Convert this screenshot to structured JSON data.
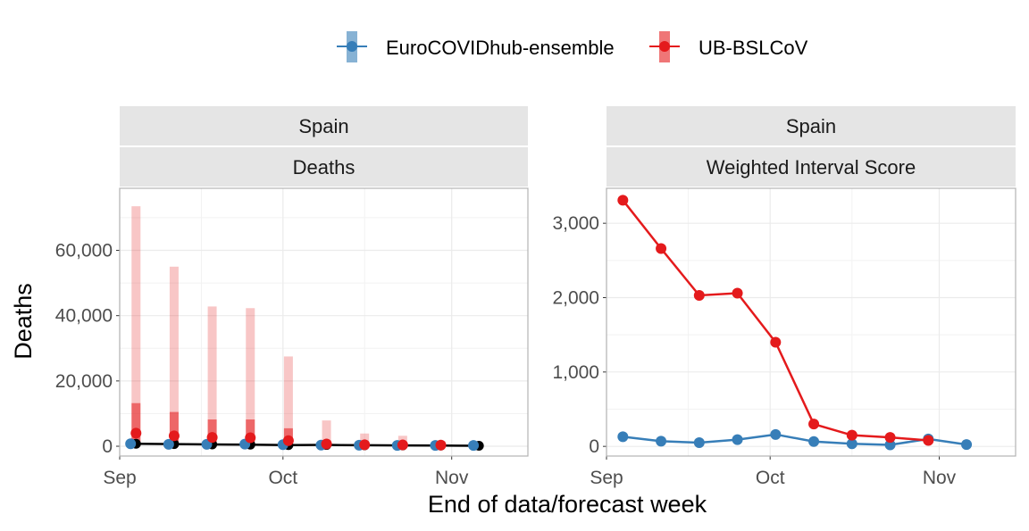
{
  "legend": {
    "items": [
      {
        "label": "EuroCOVIDhub-ensemble",
        "color": "#377eb8"
      },
      {
        "label": "UB-BSLCoV",
        "color": "#e41a1c"
      }
    ]
  },
  "xlabel": "End of data/forecast week",
  "ylabel": "Deaths",
  "chart_data": [
    {
      "type": "bar",
      "strip_top": "Spain",
      "strip_bottom": "Deaths",
      "ylim": [
        -3000,
        79000
      ],
      "yticks": [
        0,
        20000,
        40000,
        60000
      ],
      "ytick_labels": [
        "0",
        "20,000",
        "40,000",
        "60,000"
      ],
      "xlim": [
        "2021-09-01",
        "2021-11-15"
      ],
      "xticks": [
        "2021-09-01",
        "2021-10-01",
        "2021-11-01"
      ],
      "xtick_labels": [
        "Sep",
        "Oct",
        "Nov"
      ],
      "observed": {
        "name": "observed",
        "color": "#000000",
        "x": [
          "2021-09-04",
          "2021-09-11",
          "2021-09-18",
          "2021-09-25",
          "2021-10-02",
          "2021-10-09",
          "2021-10-16",
          "2021-10-23",
          "2021-10-30",
          "2021-11-06"
        ],
        "y": [
          750,
          650,
          550,
          500,
          350,
          400,
          300,
          250,
          200,
          150
        ]
      },
      "series": [
        {
          "name": "EuroCOVIDhub-ensemble",
          "color": "#377eb8",
          "x": [
            "2021-09-03",
            "2021-09-10",
            "2021-09-17",
            "2021-09-24",
            "2021-10-01",
            "2021-10-08",
            "2021-10-15",
            "2021-10-22",
            "2021-10-29",
            "2021-11-05"
          ],
          "median": [
            750,
            600,
            600,
            650,
            500,
            350,
            300,
            250,
            250,
            250
          ],
          "lower_90": [
            500,
            400,
            400,
            450,
            300,
            200,
            150,
            100,
            100,
            100
          ],
          "upper_90": [
            1100,
            900,
            900,
            950,
            800,
            550,
            500,
            400,
            400,
            400
          ],
          "lower_50": [
            650,
            500,
            500,
            550,
            400,
            280,
            230,
            180,
            180,
            180
          ],
          "upper_50": [
            850,
            700,
            700,
            750,
            600,
            420,
            380,
            320,
            320,
            320
          ]
        },
        {
          "name": "UB-BSLCoV",
          "color": "#e41a1c",
          "x": [
            "2021-09-04",
            "2021-09-11",
            "2021-09-18",
            "2021-09-25",
            "2021-10-02",
            "2021-10-09",
            "2021-10-16",
            "2021-10-23",
            "2021-10-30"
          ],
          "median": [
            4000,
            3200,
            2700,
            2600,
            1700,
            700,
            450,
            400,
            350
          ],
          "lower_90": [
            100,
            100,
            100,
            100,
            100,
            50,
            50,
            50,
            50
          ],
          "upper_90": [
            73500,
            55000,
            42800,
            42300,
            27500,
            7900,
            3900,
            3200,
            1600
          ],
          "lower_50": [
            800,
            700,
            500,
            500,
            400,
            200,
            150,
            150,
            150
          ],
          "upper_50": [
            13200,
            10500,
            8200,
            8200,
            5500,
            1800,
            1000,
            900,
            600
          ]
        }
      ]
    },
    {
      "type": "line",
      "strip_top": "Spain",
      "strip_bottom": "Weighted Interval Score",
      "ylim": [
        -130,
        3470
      ],
      "yticks": [
        0,
        1000,
        2000,
        3000
      ],
      "ytick_labels": [
        "0",
        "1,000",
        "2,000",
        "3,000"
      ],
      "xlim": [
        "2021-09-01",
        "2021-11-15"
      ],
      "xticks": [
        "2021-09-01",
        "2021-10-01",
        "2021-11-01"
      ],
      "xtick_labels": [
        "Sep",
        "Oct",
        "Nov"
      ],
      "series": [
        {
          "name": "EuroCOVIDhub-ensemble",
          "color": "#377eb8",
          "x": [
            "2021-09-04",
            "2021-09-11",
            "2021-09-18",
            "2021-09-25",
            "2021-10-02",
            "2021-10-09",
            "2021-10-16",
            "2021-10-23",
            "2021-10-30",
            "2021-11-06"
          ],
          "y": [
            130,
            70,
            50,
            90,
            160,
            65,
            35,
            20,
            100,
            25
          ]
        },
        {
          "name": "UB-BSLCoV",
          "color": "#e41a1c",
          "x": [
            "2021-09-04",
            "2021-09-11",
            "2021-09-18",
            "2021-09-25",
            "2021-10-02",
            "2021-10-09",
            "2021-10-16",
            "2021-10-23",
            "2021-10-30"
          ],
          "y": [
            3310,
            2660,
            2030,
            2060,
            1400,
            300,
            150,
            120,
            80
          ]
        }
      ]
    }
  ]
}
